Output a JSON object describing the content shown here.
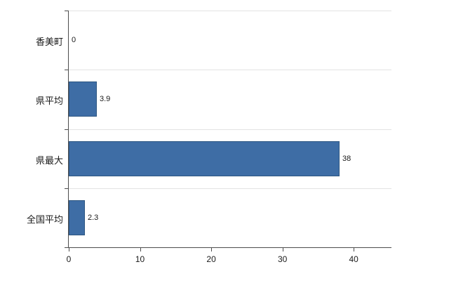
{
  "chart_data": {
    "type": "bar",
    "orientation": "horizontal",
    "title": "",
    "xlabel": "",
    "ylabel": "",
    "categories": [
      "香美町",
      "県平均",
      "県最大",
      "全国平均"
    ],
    "values": [
      0,
      3.9,
      38,
      2.3
    ],
    "value_labels": [
      "0",
      "3.9",
      "38",
      "2.3"
    ],
    "x_ticks": [
      0,
      10,
      20,
      30,
      40
    ],
    "xlim": [
      0,
      45.3
    ],
    "grid": "light horizontal category boundaries",
    "legend": "none",
    "bar_color": "#3e6da5",
    "bar_border_color": "#2e5782",
    "axis_color": "#4d4d4d"
  }
}
